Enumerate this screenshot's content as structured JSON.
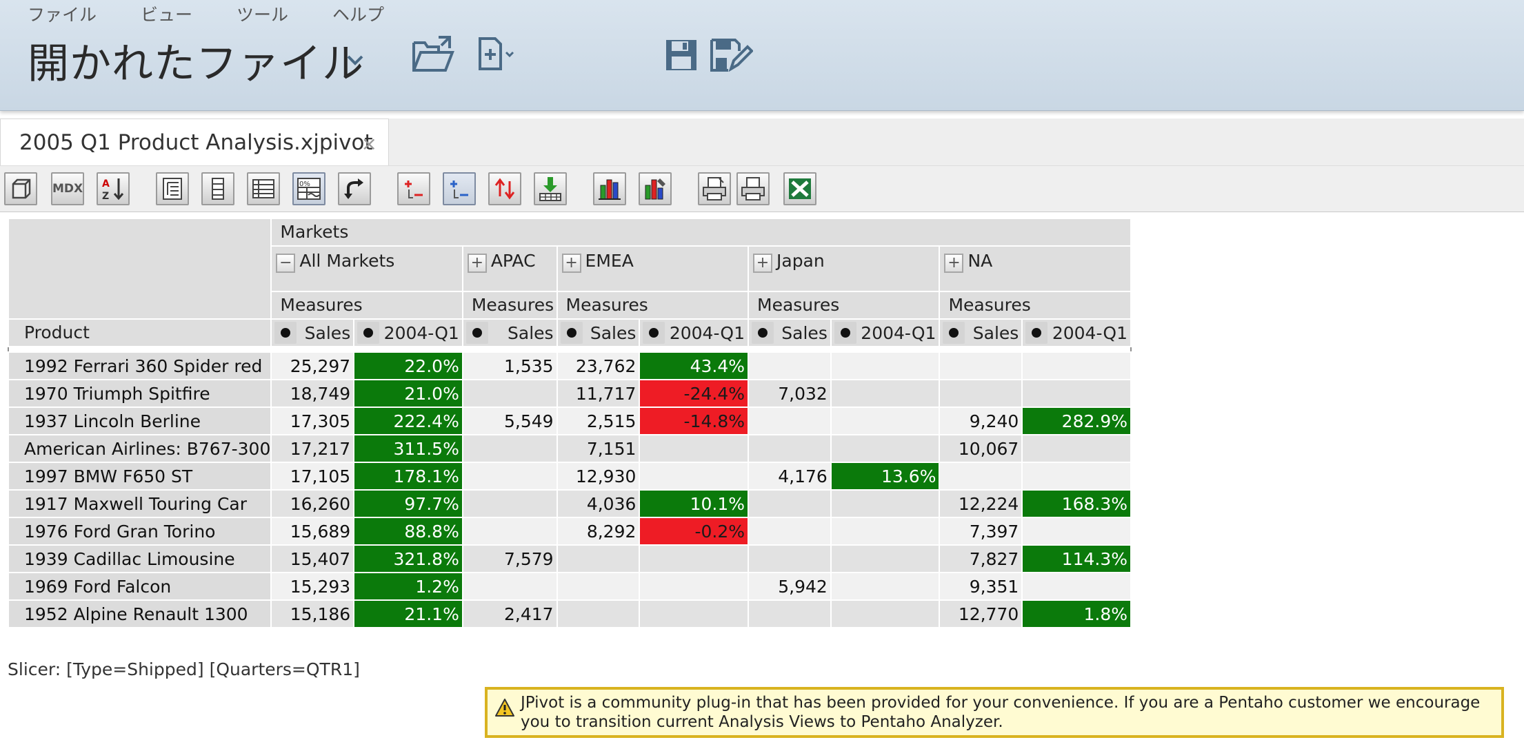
{
  "menu": [
    "ファイル",
    "ビュー",
    "ツール",
    "ヘルプ"
  ],
  "header": {
    "title": "開かれたファイル",
    "icons": [
      "chevron-down-icon",
      "open-folder-icon",
      "new-file-icon",
      "save-icon",
      "save-as-icon"
    ]
  },
  "tab": {
    "label": "2005 Q1 Product Analysis.xjpivot",
    "close": "×"
  },
  "toolbar": {
    "buttons": [
      "cube-navigator",
      "mdx",
      "sort",
      "hierarchy-levels",
      "hierarchy-columns",
      "table-format",
      "show-properties",
      "swap-axes",
      "drill-member",
      "drill-position",
      "drill-replace",
      "drill-through",
      "show-chart",
      "chart-config",
      "print",
      "print-config",
      "excel-export"
    ],
    "mdx_label": "MDX"
  },
  "pivot": {
    "dimension_header": "Markets",
    "corner_label": "Product",
    "markets": [
      {
        "label": "All Markets",
        "expand": "−"
      },
      {
        "label": "APAC",
        "expand": "+"
      },
      {
        "label": "EMEA",
        "expand": "+"
      },
      {
        "label": "Japan",
        "expand": "+"
      },
      {
        "label": "NA",
        "expand": "+"
      }
    ],
    "measures_label": "Measures",
    "sales_label": "Sales",
    "q1_label": "2004-Q1",
    "rows": [
      {
        "product": "1992 Ferrari 360 Spider red",
        "all_sales": "25,297",
        "all_q1": "22.0%",
        "apac_sales": "1,535",
        "emea_sales": "23,762",
        "emea_q1": "43.4%",
        "japan_sales": "",
        "japan_q1": "",
        "na_sales": "",
        "na_q1": ""
      },
      {
        "product": "1970 Triumph Spitfire",
        "all_sales": "18,749",
        "all_q1": "21.0%",
        "apac_sales": "",
        "emea_sales": "11,717",
        "emea_q1": "-24.4%",
        "japan_sales": "7,032",
        "japan_q1": "",
        "na_sales": "",
        "na_q1": ""
      },
      {
        "product": "1937 Lincoln Berline",
        "all_sales": "17,305",
        "all_q1": "222.4%",
        "apac_sales": "5,549",
        "emea_sales": "2,515",
        "emea_q1": "-14.8%",
        "japan_sales": "",
        "japan_q1": "",
        "na_sales": "9,240",
        "na_q1": "282.9%"
      },
      {
        "product": "American Airlines: B767-300",
        "all_sales": "17,217",
        "all_q1": "311.5%",
        "apac_sales": "",
        "emea_sales": "7,151",
        "emea_q1": "",
        "japan_sales": "",
        "japan_q1": "",
        "na_sales": "10,067",
        "na_q1": ""
      },
      {
        "product": "1997 BMW F650 ST",
        "all_sales": "17,105",
        "all_q1": "178.1%",
        "apac_sales": "",
        "emea_sales": "12,930",
        "emea_q1": "",
        "japan_sales": "4,176",
        "japan_q1": "13.6%",
        "na_sales": "",
        "na_q1": ""
      },
      {
        "product": "1917 Maxwell Touring Car",
        "all_sales": "16,260",
        "all_q1": "97.7%",
        "apac_sales": "",
        "emea_sales": "4,036",
        "emea_q1": "10.1%",
        "japan_sales": "",
        "japan_q1": "",
        "na_sales": "12,224",
        "na_q1": "168.3%"
      },
      {
        "product": "1976 Ford Gran Torino",
        "all_sales": "15,689",
        "all_q1": "88.8%",
        "apac_sales": "",
        "emea_sales": "8,292",
        "emea_q1": "-0.2%",
        "japan_sales": "",
        "japan_q1": "",
        "na_sales": "7,397",
        "na_q1": ""
      },
      {
        "product": "1939 Cadillac Limousine",
        "all_sales": "15,407",
        "all_q1": "321.8%",
        "apac_sales": "7,579",
        "emea_sales": "",
        "emea_q1": "",
        "japan_sales": "",
        "japan_q1": "",
        "na_sales": "7,827",
        "na_q1": "114.3%"
      },
      {
        "product": "1969 Ford Falcon",
        "all_sales": "15,293",
        "all_q1": "1.2%",
        "apac_sales": "",
        "emea_sales": "",
        "emea_q1": "",
        "japan_sales": "5,942",
        "japan_q1": "",
        "na_sales": "9,351",
        "na_q1": ""
      },
      {
        "product": "1952 Alpine Renault 1300",
        "all_sales": "15,186",
        "all_q1": "21.1%",
        "apac_sales": "2,417",
        "emea_sales": "",
        "emea_q1": "",
        "japan_sales": "",
        "japan_q1": "",
        "na_sales": "12,770",
        "na_q1": "1.8%"
      }
    ]
  },
  "colors": {
    "positive": "#0b7a0b",
    "negative": "#ee1c25"
  },
  "slicer": "Slicer: [Type=Shipped] [Quarters=QTR1]",
  "notice": {
    "icon": "warning-icon",
    "text": "JPivot is a community plug-in that has been provided for your convenience. If you are a Pentaho customer we encourage you to transition current Analysis Views to Pentaho Analyzer."
  }
}
